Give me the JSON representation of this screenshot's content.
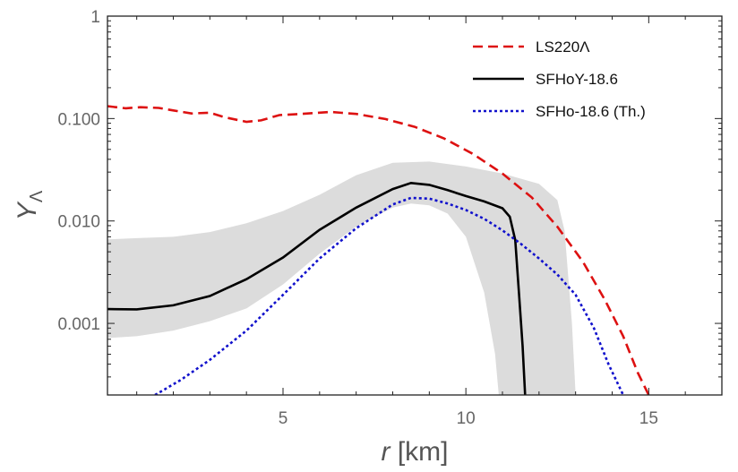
{
  "chart_data": {
    "type": "line",
    "title": "",
    "xlabel": {
      "italic": "r",
      "rest": " [km]"
    },
    "ylabel": {
      "main": "Y",
      "sub": "Λ"
    },
    "xlim": [
      0.2,
      17
    ],
    "ylim": [
      0.0002,
      1
    ],
    "yscale": "log",
    "grid": false,
    "legend_position": "top-right",
    "xticks": [
      {
        "value": 5,
        "label": "5"
      },
      {
        "value": 10,
        "label": "10"
      },
      {
        "value": 15,
        "label": "15"
      }
    ],
    "yticks": [
      {
        "value": 0.001,
        "label": "0.001"
      },
      {
        "value": 0.01,
        "label": "0.010"
      },
      {
        "value": 0.1,
        "label": "0.100"
      },
      {
        "value": 1,
        "label": "1"
      }
    ],
    "band": {
      "color": "#dcdcdc",
      "upper": [
        [
          0.2,
          0.0066
        ],
        [
          1,
          0.0068
        ],
        [
          2,
          0.007
        ],
        [
          3,
          0.0078
        ],
        [
          4,
          0.0095
        ],
        [
          5,
          0.0125
        ],
        [
          6,
          0.018
        ],
        [
          7,
          0.028
        ],
        [
          8,
          0.037
        ],
        [
          9,
          0.038
        ],
        [
          10,
          0.034
        ],
        [
          11,
          0.029
        ],
        [
          12,
          0.023
        ],
        [
          12.5,
          0.016
        ],
        [
          12.7,
          0.008
        ],
        [
          12.9,
          0.001
        ],
        [
          13.0,
          0.0002
        ]
      ],
      "lower": [
        [
          0.2,
          0.00072
        ],
        [
          1,
          0.00075
        ],
        [
          2,
          0.00085
        ],
        [
          3,
          0.00105
        ],
        [
          4,
          0.0014
        ],
        [
          5,
          0.0024
        ],
        [
          6,
          0.0048
        ],
        [
          7,
          0.0088
        ],
        [
          8,
          0.0135
        ],
        [
          8.5,
          0.0148
        ],
        [
          9,
          0.0142
        ],
        [
          9.5,
          0.0118
        ],
        [
          10,
          0.007
        ],
        [
          10.5,
          0.002
        ],
        [
          10.8,
          0.0005
        ],
        [
          10.9,
          0.0002
        ]
      ]
    },
    "series": [
      {
        "name": "LS220Λ",
        "color": "#dd1111",
        "dash": "dashed",
        "points": [
          [
            0.2,
            0.132
          ],
          [
            0.7,
            0.126
          ],
          [
            1.1,
            0.129
          ],
          [
            1.6,
            0.127
          ],
          [
            2,
            0.12
          ],
          [
            2.5,
            0.112
          ],
          [
            3,
            0.114
          ],
          [
            3.4,
            0.103
          ],
          [
            4,
            0.093
          ],
          [
            4.4,
            0.096
          ],
          [
            4.9,
            0.108
          ],
          [
            5.5,
            0.111
          ],
          [
            6.3,
            0.116
          ],
          [
            7,
            0.111
          ],
          [
            7.8,
            0.099
          ],
          [
            8.6,
            0.083
          ],
          [
            9.4,
            0.064
          ],
          [
            10.2,
            0.045
          ],
          [
            11,
            0.029
          ],
          [
            11.8,
            0.017
          ],
          [
            12.5,
            0.0088
          ],
          [
            13.2,
            0.004
          ],
          [
            13.8,
            0.0017
          ],
          [
            14.3,
            0.00075
          ],
          [
            14.7,
            0.00033
          ],
          [
            15,
            0.0002
          ]
        ]
      },
      {
        "name": "SFHoY-18.6",
        "color": "#000000",
        "dash": "solid",
        "points": [
          [
            0.2,
            0.00138
          ],
          [
            1,
            0.00137
          ],
          [
            2,
            0.0015
          ],
          [
            3,
            0.00185
          ],
          [
            4,
            0.0027
          ],
          [
            5,
            0.0044
          ],
          [
            6,
            0.0082
          ],
          [
            7,
            0.0135
          ],
          [
            8,
            0.0205
          ],
          [
            8.5,
            0.0235
          ],
          [
            9,
            0.0225
          ],
          [
            9.5,
            0.02
          ],
          [
            10,
            0.0175
          ],
          [
            10.5,
            0.0155
          ],
          [
            11,
            0.0133
          ],
          [
            11.2,
            0.011
          ],
          [
            11.35,
            0.0065
          ],
          [
            11.45,
            0.002
          ],
          [
            11.55,
            0.0006
          ],
          [
            11.62,
            0.0002
          ]
        ]
      },
      {
        "name": "SFHo-18.6 (Th.)",
        "color": "#1111cc",
        "dash": "dotted",
        "points": [
          [
            1.5,
            0.0002
          ],
          [
            2.2,
            0.00028
          ],
          [
            3,
            0.00044
          ],
          [
            4,
            0.00085
          ],
          [
            5,
            0.0019
          ],
          [
            6,
            0.0043
          ],
          [
            7,
            0.0085
          ],
          [
            8,
            0.0145
          ],
          [
            8.5,
            0.0168
          ],
          [
            9,
            0.0165
          ],
          [
            9.5,
            0.0148
          ],
          [
            10,
            0.0128
          ],
          [
            10.5,
            0.0105
          ],
          [
            11,
            0.0081
          ],
          [
            11.5,
            0.006
          ],
          [
            12,
            0.0043
          ],
          [
            12.5,
            0.003
          ],
          [
            13,
            0.0019
          ],
          [
            13.5,
            0.0009
          ],
          [
            13.9,
            0.0004
          ],
          [
            14.3,
            0.0002
          ]
        ]
      }
    ]
  }
}
